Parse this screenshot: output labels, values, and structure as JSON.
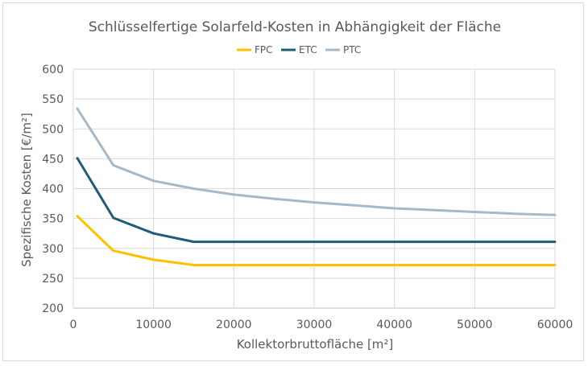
{
  "chart_data": {
    "type": "line",
    "title": "Schlüsselfertige Solarfeld-Kosten in Abhängigkeit der Fläche",
    "xlabel": "Kollektorbruttofläche [m²]",
    "ylabel": "Spezifische Kosten [€/m²]",
    "xlim": [
      0,
      60000
    ],
    "ylim": [
      200,
      600
    ],
    "xticks": [
      0,
      10000,
      20000,
      30000,
      40000,
      50000,
      60000
    ],
    "yticks": [
      200,
      250,
      300,
      350,
      400,
      450,
      500,
      550,
      600
    ],
    "grid": true,
    "legend_position": "top",
    "series": [
      {
        "name": "FPC",
        "color": "#FFC000",
        "x": [
          500,
          5000,
          10000,
          15000,
          20000,
          30000,
          40000,
          50000,
          60000
        ],
        "y": [
          354,
          296,
          281,
          272,
          272,
          272,
          272,
          272,
          272
        ]
      },
      {
        "name": "ETC",
        "color": "#1F5C7A",
        "x": [
          500,
          5000,
          10000,
          15000,
          20000,
          30000,
          40000,
          50000,
          60000
        ],
        "y": [
          451,
          351,
          325,
          311,
          311,
          311,
          311,
          311,
          311
        ]
      },
      {
        "name": "PTC",
        "color": "#A5B9C9",
        "x": [
          500,
          5000,
          10000,
          15000,
          20000,
          25000,
          30000,
          35000,
          40000,
          45000,
          50000,
          55000,
          60000
        ],
        "y": [
          534,
          439,
          413,
          400,
          390,
          383,
          377,
          372,
          367,
          364,
          361,
          358,
          356
        ]
      }
    ]
  }
}
